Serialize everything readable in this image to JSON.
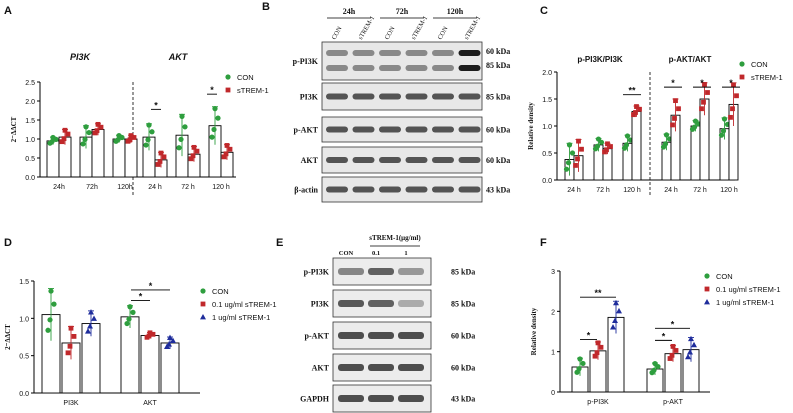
{
  "panels": {
    "A": "A",
    "B": "B",
    "C": "C",
    "D": "D",
    "E": "E",
    "F": "F"
  },
  "colors": {
    "con": "#2e9e3e",
    "strem": "#c0282b",
    "low": "#c0282b",
    "high": "#1f2d9c"
  },
  "chart_data": [
    {
      "id": "A",
      "type": "bar",
      "ylabel": "2⁻ΔΔCT",
      "ylim": [
        0,
        2.5
      ],
      "yticks": [
        "0.0",
        "0.5",
        "1.0",
        "1.5",
        "2.0",
        "2.5"
      ],
      "groups": [
        {
          "title": "PI3K",
          "categories": [
            "24h",
            "72h",
            "120h"
          ],
          "series": [
            {
              "name": "CON",
              "values": [
                0.95,
                1.05,
                1.0
              ]
            },
            {
              "name": "sTREM-1",
              "values": [
                1.05,
                1.25,
                1.0
              ]
            }
          ]
        },
        {
          "title": "AKT",
          "categories": [
            "24 h",
            "72 h",
            "120 h"
          ],
          "series": [
            {
              "name": "CON",
              "values": [
                1.05,
                1.1,
                1.35
              ]
            },
            {
              "name": "sTREM-1",
              "values": [
                0.45,
                0.6,
                0.65
              ]
            }
          ]
        }
      ],
      "errors": [
        [
          0.1,
          0.3,
          0.1
        ],
        [
          0.2,
          0.15,
          0.1
        ],
        [
          0.35,
          0.55,
          0.5
        ],
        [
          0.2,
          0.2,
          0.2
        ]
      ],
      "legend": [
        "CON",
        "sTREM-1"
      ],
      "sig": [
        "*",
        "*"
      ]
    },
    {
      "id": "C",
      "type": "bar",
      "ylabel": "Relative density",
      "ylim": [
        0,
        2.0
      ],
      "yticks": [
        "0.0",
        "0.5",
        "1.0",
        "1.5",
        "2.0"
      ],
      "groups": [
        {
          "title": "p-PI3K/PI3K",
          "categories": [
            "24 h",
            "72 h",
            "120 h"
          ],
          "series": [
            {
              "name": "CON",
              "values": [
                0.38,
                0.65,
                0.68
              ]
            },
            {
              "name": "sTREM-1",
              "values": [
                0.45,
                0.58,
                1.27
              ]
            }
          ]
        },
        {
          "title": "p-AKT/AKT",
          "categories": [
            "24 h",
            "72 h",
            "120 h"
          ],
          "series": [
            {
              "name": "CON",
              "values": [
                0.7,
                1.0,
                0.95
              ]
            },
            {
              "name": "sTREM-1",
              "values": [
                1.2,
                1.5,
                1.4
              ]
            }
          ]
        }
      ],
      "errors": [
        [
          0.3,
          0.12,
          0.15
        ],
        [
          0.3,
          0.1,
          0.1
        ],
        [
          0.15,
          0.1,
          0.2
        ],
        [
          0.3,
          0.3,
          0.4
        ]
      ],
      "legend": [
        "CON",
        "sTREM-1"
      ],
      "sig": [
        "**",
        "*",
        "*",
        "*"
      ]
    },
    {
      "id": "D",
      "type": "bar",
      "ylabel": "2⁻ΔΔCT",
      "ylim": [
        0,
        1.5
      ],
      "yticks": [
        "0.0",
        "0.5",
        "1.0",
        "1.5"
      ],
      "categories": [
        "PI3K",
        "AKT"
      ],
      "series": [
        {
          "name": "CON",
          "values": [
            1.05,
            1.02
          ]
        },
        {
          "name": "0.1 ug/ml sTREM-1",
          "values": [
            0.67,
            0.77
          ]
        },
        {
          "name": "1 ug/ml sTREM-1",
          "values": [
            0.93,
            0.67
          ]
        }
      ],
      "errors": [
        [
          0.35,
          0.15
        ],
        [
          0.22,
          0.04
        ],
        [
          0.17,
          0.08
        ]
      ],
      "sig": [
        "*",
        "*"
      ]
    },
    {
      "id": "F",
      "type": "bar",
      "ylabel": "Relative density",
      "ylim": [
        0,
        3
      ],
      "yticks": [
        "0",
        "1",
        "2",
        "3"
      ],
      "categories": [
        "p-PI3K",
        "p-AKT"
      ],
      "series": [
        {
          "name": "CON",
          "values": [
            0.62,
            0.57
          ]
        },
        {
          "name": "0.1 ug/ml sTREM-1",
          "values": [
            1.02,
            0.95
          ]
        },
        {
          "name": "1 ug/ml sTREM-1",
          "values": [
            1.85,
            1.05
          ]
        }
      ],
      "errors": [
        [
          0.22,
          0.15
        ],
        [
          0.22,
          0.2
        ],
        [
          0.4,
          0.3
        ]
      ],
      "sig": [
        "**",
        "*",
        "*",
        "*"
      ]
    }
  ],
  "blot_B": {
    "lanes": [
      "CON",
      "sTREM-1",
      "CON",
      "sTREM-1",
      "CON",
      "sTREM-1"
    ],
    "times": [
      "24h",
      "72h",
      "120h"
    ],
    "rows": [
      {
        "label": "p-PI3K",
        "kda": [
          "60 kDa",
          "85 kDa"
        ]
      },
      {
        "label": "PI3K",
        "kda": [
          "85 kDa"
        ]
      },
      {
        "label": "p-AKT",
        "kda": [
          "60 kDa"
        ]
      },
      {
        "label": "AKT",
        "kda": [
          "60 kDa"
        ]
      },
      {
        "label": "β-actin",
        "kda": [
          "43 kDa"
        ]
      }
    ]
  },
  "blot_E": {
    "header": "sTREM-1(μg/ml)",
    "lanes": [
      "CON",
      "0.1",
      "1"
    ],
    "rows": [
      {
        "label": "p-PI3K",
        "kda": "85 kDa"
      },
      {
        "label": "PI3K",
        "kda": "85 kDa"
      },
      {
        "label": "p-AKT",
        "kda": "60 kDa"
      },
      {
        "label": "AKT",
        "kda": "60 kDa"
      },
      {
        "label": "GAPDH",
        "kda": "43 kDa"
      }
    ]
  }
}
